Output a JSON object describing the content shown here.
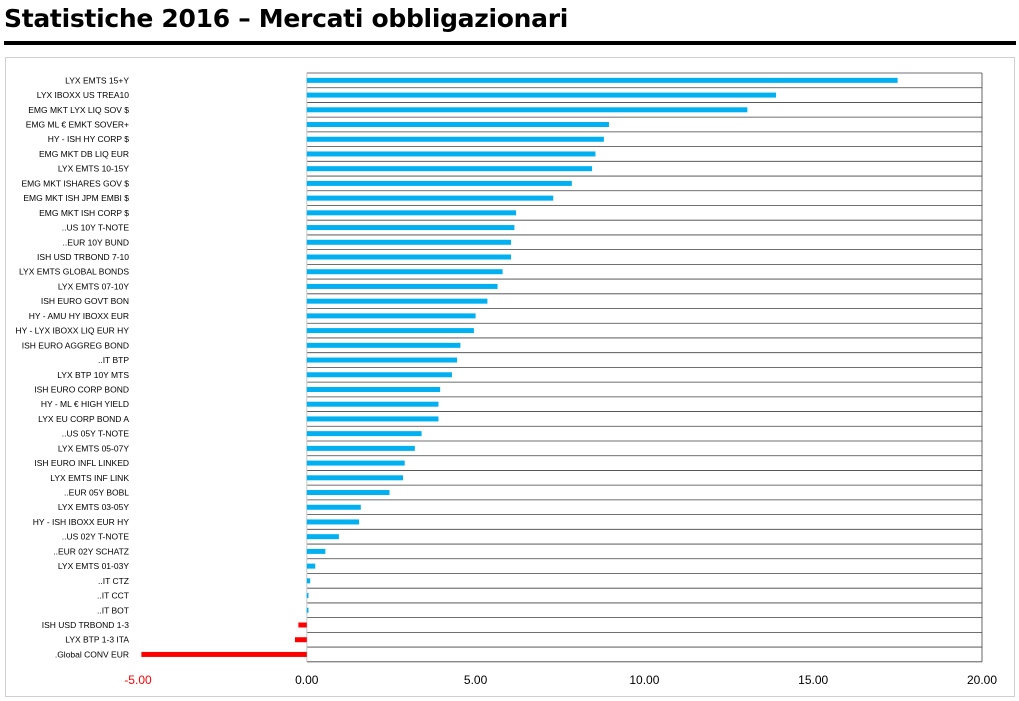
{
  "header": {
    "title": "Statistiche 2016 – Mercati obbligazionari"
  },
  "colors": {
    "positive": "#00b0f0",
    "negative": "#ff0000",
    "negative_tick": "#ff0000",
    "grid": "#404040"
  },
  "chart_data": {
    "type": "bar",
    "orientation": "horizontal",
    "title": "",
    "xlabel": "",
    "ylabel": "",
    "xlim": [
      -5,
      20
    ],
    "x_ticks": [
      "-5.00",
      "0.00",
      "5.00",
      "10.00",
      "15.00",
      "20.00"
    ],
    "grid": "horizontal lines between categories",
    "categories": [
      "LYX EMTS 15+Y",
      "LYX IBOXX US TREA10",
      "EMG MKT LYX LIQ SOV $",
      "EMG ML € EMKT SOVER+",
      "HY - ISH HY CORP $",
      "EMG MKT DB LIQ EUR",
      "LYX EMTS 10-15Y",
      "EMG MKT ISHARES GOV $",
      "EMG MKT ISH JPM EMBI $",
      "EMG MKT ISH CORP $",
      "..US 10Y T-NOTE",
      "..EUR 10Y BUND",
      "ISH USD TRBOND 7-10",
      "LYX EMTS GLOBAL BONDS",
      "LYX EMTS 07-10Y",
      "ISH EURO GOVT BON",
      "HY - AMU HY IBOXX EUR",
      "HY - LYX IBOXX LIQ EUR HY",
      "ISH EURO AGGREG BOND",
      "..IT BTP",
      "LYX BTP 10Y MTS",
      "ISH EURO CORP BOND",
      "HY - ML € HIGH YIELD",
      "LYX EU CORP BOND A",
      "..US 05Y T-NOTE",
      "LYX EMTS 05-07Y",
      "ISH EURO INFL LINKED",
      "LYX EMTS INF LINK",
      "..EUR 05Y BOBL",
      "LYX EMTS 03-05Y",
      "HY - ISH IBOXX EUR HY",
      "..US 02Y T-NOTE",
      "..EUR 02Y SCHATZ",
      "LYX EMTS 01-03Y",
      "..IT CTZ",
      "..IT CCT",
      "..IT BOT",
      "ISH USD TRBOND 1-3",
      "LYX BTP 1-3 ITA",
      ".Global CONV EUR"
    ],
    "values": [
      17.5,
      13.9,
      13.05,
      8.95,
      8.8,
      8.55,
      8.45,
      7.85,
      7.3,
      6.2,
      6.15,
      6.05,
      6.05,
      5.8,
      5.65,
      5.35,
      5.0,
      4.95,
      4.55,
      4.45,
      4.3,
      3.95,
      3.9,
      3.9,
      3.4,
      3.2,
      2.9,
      2.85,
      2.45,
      1.6,
      1.55,
      0.95,
      0.55,
      0.25,
      0.1,
      0.05,
      0.05,
      -0.25,
      -0.35,
      -4.9
    ]
  }
}
